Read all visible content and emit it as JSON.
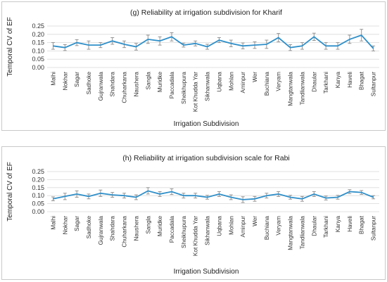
{
  "chart_data": [
    {
      "type": "line",
      "title": "(g) Reliability at irrigation subdivision for Kharif",
      "xlabel": "Irrigation Subdivision",
      "ylabel": "Temporal CV of EF",
      "ylim": [
        0,
        0.25
      ],
      "yticks": [
        "0.00",
        "0.05",
        "0.10",
        "0.15",
        "0.20",
        "0.25"
      ],
      "grid": true,
      "categories": [
        "Malhi",
        "Nokhar",
        "Sagar",
        "Sadhoke",
        "Gujranwala",
        "Shahdara",
        "Chuharkana",
        "Naushera",
        "Sangla",
        "Muridke",
        "Paccadala",
        "Sheikhupura",
        "Kot Khudda Yar",
        "Sikhanwala",
        "Uqbana",
        "Mohlan",
        "Aminpur",
        "Wer",
        "Buchiana",
        "Veryam",
        "Mangtanwala",
        "Tandlianwala",
        "Dhaular",
        "Tarkhani",
        "Kanya",
        "Haveli",
        "Bhagat",
        "Sultanpur"
      ],
      "series": [
        {
          "values": [
            0.13,
            0.12,
            0.15,
            0.135,
            0.135,
            0.16,
            0.14,
            0.125,
            0.17,
            0.16,
            0.185,
            0.135,
            0.145,
            0.125,
            0.165,
            0.145,
            0.13,
            0.135,
            0.14,
            0.18,
            0.12,
            0.13,
            0.185,
            0.13,
            0.13,
            0.17,
            0.195,
            0.115
          ],
          "errors": [
            0.02,
            0.018,
            0.018,
            0.025,
            0.015,
            0.02,
            0.02,
            0.02,
            0.025,
            0.025,
            0.025,
            0.012,
            0.015,
            0.015,
            0.015,
            0.02,
            0.018,
            0.02,
            0.025,
            0.025,
            0.018,
            0.02,
            0.022,
            0.02,
            0.02,
            0.025,
            0.035,
            0.015
          ],
          "color": "#2e8fc9"
        }
      ]
    },
    {
      "type": "line",
      "title": "(h) Reliability at irrigation subdivision scale for Rabi",
      "xlabel": "Irrigation Subdivision",
      "ylabel": "Temporal CV of EF",
      "ylim": [
        0,
        0.25
      ],
      "yticks": [
        "0.00",
        "0.05",
        "0.10",
        "0.15",
        "0.20",
        "0.25"
      ],
      "grid": true,
      "categories": [
        "Malhi",
        "Nokhar",
        "Sagar",
        "Sadhoke",
        "Gujranwala",
        "Shahdara",
        "Chuharkana",
        "Naushera",
        "Sangla",
        "Muridke",
        "Paccadala",
        "Sheikhupura",
        "Kot Khudda Yar",
        "Sikhanwala",
        "Uqbana",
        "Mohlan",
        "Aminpur",
        "Wer",
        "Buchiana",
        "Veryam",
        "Mangtanwala",
        "Tandlianwala",
        "Dhaular",
        "Tarkhani",
        "Kanya",
        "Haveli",
        "Bhagat",
        "Sultanpur"
      ],
      "series": [
        {
          "values": [
            0.08,
            0.095,
            0.11,
            0.095,
            0.115,
            0.105,
            0.1,
            0.09,
            0.13,
            0.11,
            0.125,
            0.1,
            0.1,
            0.09,
            0.11,
            0.09,
            0.075,
            0.08,
            0.1,
            0.11,
            0.09,
            0.08,
            0.11,
            0.085,
            0.09,
            0.125,
            0.12,
            0.09
          ],
          "errors": [
            0.012,
            0.02,
            0.02,
            0.015,
            0.02,
            0.015,
            0.015,
            0.015,
            0.02,
            0.015,
            0.018,
            0.015,
            0.015,
            0.012,
            0.015,
            0.015,
            0.018,
            0.015,
            0.015,
            0.015,
            0.012,
            0.015,
            0.015,
            0.012,
            0.012,
            0.012,
            0.012,
            0.01
          ],
          "color": "#2e8fc9"
        }
      ]
    }
  ]
}
